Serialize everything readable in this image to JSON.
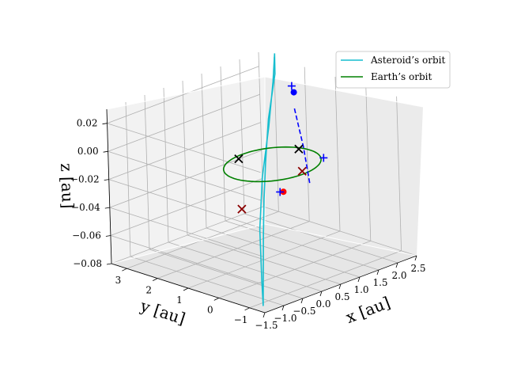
{
  "chart_data": {
    "type": "line",
    "projection": "3d",
    "xlabel": "x [au]",
    "ylabel": "y [au]",
    "zlabel": "z [au]",
    "xlim": [
      -1.5,
      2.5
    ],
    "ylim": [
      -1.5,
      3.5
    ],
    "zlim": [
      -0.08,
      0.03
    ],
    "x_ticks": [
      "−1.5",
      "−1.0",
      "−0.5",
      "0.0",
      "0.5",
      "1.0",
      "1.5",
      "2.0",
      "2.5"
    ],
    "y_ticks": [
      "−1",
      "0",
      "1",
      "2",
      "3"
    ],
    "z_ticks": [
      "−0.08",
      "−0.06",
      "−0.04",
      "−0.02",
      "0.00",
      "0.02"
    ],
    "grid": true,
    "legend": {
      "placement": "top-right",
      "entries": [
        "Asteroid’s orbit",
        "Earth’s orbit"
      ]
    },
    "series": [
      {
        "name": "Asteroid’s orbit",
        "color": "#17becf",
        "style": "solid",
        "x": [
          2.6,
          2.2,
          1.2,
          0.3,
          -0.4,
          -1.0,
          -1.3,
          -1.0,
          -0.3,
          0.6,
          1.6,
          2.3,
          2.6
        ],
        "y": [
          3.1,
          2.6,
          1.6,
          0.6,
          -0.2,
          -0.9,
          -1.2,
          -0.8,
          0.1,
          1.1,
          2.1,
          2.8,
          3.1
        ],
        "z": [
          0.031,
          0.024,
          0.009,
          -0.006,
          -0.019,
          -0.033,
          -0.079,
          -0.068,
          -0.044,
          -0.023,
          -0.004,
          0.016,
          0.031
        ]
      },
      {
        "name": "Earth’s orbit",
        "color": "#008000",
        "style": "solid",
        "circle": {
          "center": [
            0,
            0,
            0
          ],
          "radius": 1
        }
      },
      {
        "name": "",
        "color": "#0000ff",
        "style": "dashed",
        "x": [
          0.8,
          1.3,
          1.8
        ],
        "y": [
          -0.2,
          0.6,
          1.5
        ],
        "z": [
          -0.02,
          -0.005,
          0.012
        ]
      }
    ],
    "markers": [
      {
        "marker": "x",
        "color": "#000000",
        "x": -0.2,
        "y": 0.85,
        "z": 0
      },
      {
        "marker": "x",
        "color": "#000000",
        "x": 0.9,
        "y": 0.25,
        "z": 0
      },
      {
        "marker": "x",
        "color": "#8b0000",
        "x": 0.1,
        "y": -0.85,
        "z": 0
      },
      {
        "marker": "x",
        "color": "#8b0000",
        "x": 0.2,
        "y": 1.3,
        "z": -0.043
      },
      {
        "marker": "o",
        "color": "#ff0000",
        "x": 0.15,
        "y": -0.15,
        "z": -0.02
      },
      {
        "marker": "o",
        "color": "#0000ff",
        "x": 2.2,
        "y": 2.0,
        "z": 0.015
      },
      {
        "marker": "+",
        "color": "#0000ff",
        "x": 0.1,
        "y": -0.1,
        "z": -0.02
      },
      {
        "marker": "+",
        "color": "#0000ff",
        "x": 2.15,
        "y": 2.0,
        "z": 0.02
      },
      {
        "marker": "+",
        "color": "#0000ff",
        "x": 1.5,
        "y": 0.2,
        "z": -0.012
      }
    ]
  }
}
